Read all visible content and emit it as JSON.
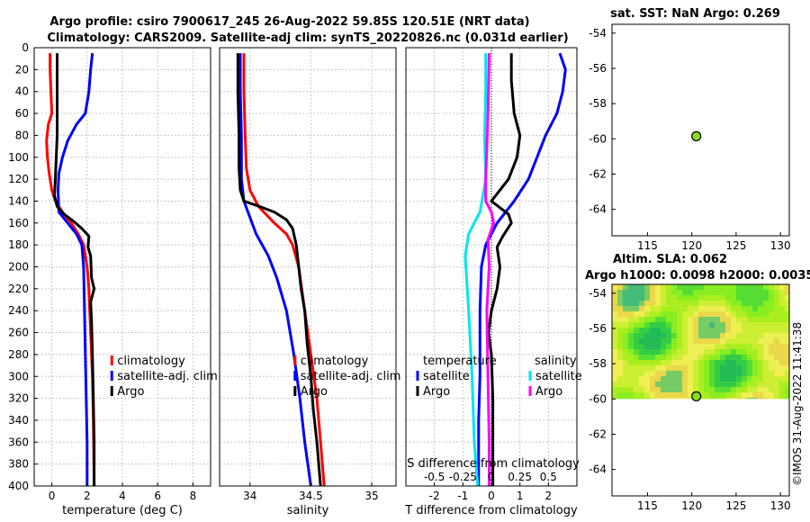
{
  "figure": {
    "title_line1": "Argo profile: csiro 7900617_245 26-Aug-2022 59.85S 120.51E (NRT data)",
    "title_line2": "Climatology: CARS2009. Satellite-adj clim: synTS_20220826.nc (0.031d earlier)",
    "watermark": "©IMOS 31-Aug-2022 11:41:38",
    "colors": {
      "climatology": "#ff0000",
      "satellite": "#0000ff",
      "argo": "#000000",
      "sat_salinity": "#00e5ee",
      "argo_salinity": "#ff00ff"
    }
  },
  "chart_data": [
    {
      "type": "line",
      "id": "temperature",
      "xlabel": "temperature (deg C)",
      "ylabel": "",
      "xlim": [
        -1,
        9
      ],
      "ylim": [
        400,
        0
      ],
      "xticks": [
        0,
        2,
        4,
        6,
        8
      ],
      "xtick_labels": [
        "0",
        "2",
        "4",
        "6",
        "8"
      ],
      "yticks": [
        0,
        20,
        40,
        60,
        80,
        100,
        120,
        140,
        160,
        180,
        200,
        220,
        240,
        260,
        280,
        300,
        320,
        340,
        360,
        380,
        400
      ],
      "ytick_labels": [
        "0",
        "20",
        "40",
        "60",
        "80",
        "100",
        "120",
        "140",
        "160",
        "180",
        "200",
        "220",
        "240",
        "260",
        "280",
        "300",
        "320",
        "340",
        "360",
        "380",
        "400"
      ],
      "legend": [
        "climatology",
        "satellite-adj. clim",
        "Argo"
      ],
      "series": [
        {
          "name": "climatology",
          "color": "#ff0000",
          "points": [
            [
              -0.1,
              5
            ],
            [
              -0.1,
              20
            ],
            [
              -0.05,
              40
            ],
            [
              0,
              60
            ],
            [
              -0.2,
              70
            ],
            [
              -0.3,
              85
            ],
            [
              -0.25,
              100
            ],
            [
              -0.15,
              115
            ],
            [
              0,
              130
            ],
            [
              0.2,
              140
            ],
            [
              0.6,
              150
            ],
            [
              1.1,
              160
            ],
            [
              1.5,
              170
            ],
            [
              1.8,
              180
            ],
            [
              2.0,
              200
            ],
            [
              2.1,
              220
            ],
            [
              2.15,
              240
            ],
            [
              2.2,
              260
            ],
            [
              2.25,
              280
            ],
            [
              2.3,
              300
            ],
            [
              2.35,
              340
            ],
            [
              2.4,
              400
            ]
          ]
        },
        {
          "name": "satellite-adj. clim",
          "color": "#0000ff",
          "points": [
            [
              2.3,
              5
            ],
            [
              2.2,
              20
            ],
            [
              2.1,
              40
            ],
            [
              1.9,
              60
            ],
            [
              1.4,
              70
            ],
            [
              0.9,
              85
            ],
            [
              0.6,
              100
            ],
            [
              0.4,
              115
            ],
            [
              0.35,
              130
            ],
            [
              0.4,
              150
            ],
            [
              0.9,
              160
            ],
            [
              1.4,
              170
            ],
            [
              1.7,
              180
            ],
            [
              1.8,
              200
            ],
            [
              1.85,
              240
            ],
            [
              1.9,
              280
            ],
            [
              1.95,
              320
            ],
            [
              2.0,
              360
            ],
            [
              2.0,
              400
            ]
          ]
        },
        {
          "name": "Argo",
          "color": "#000000",
          "points": [
            [
              0.3,
              5
            ],
            [
              0.3,
              30
            ],
            [
              0.3,
              60
            ],
            [
              0.3,
              80
            ],
            [
              0.25,
              100
            ],
            [
              0.2,
              120
            ],
            [
              0.15,
              135
            ],
            [
              0.3,
              145
            ],
            [
              0.7,
              152
            ],
            [
              1.2,
              158
            ],
            [
              1.7,
              165
            ],
            [
              2.1,
              172
            ],
            [
              2.05,
              182
            ],
            [
              2.2,
              190
            ],
            [
              2.25,
              210
            ],
            [
              2.4,
              220
            ],
            [
              2.2,
              232
            ],
            [
              2.25,
              250
            ],
            [
              2.3,
              280
            ],
            [
              2.35,
              320
            ],
            [
              2.4,
              360
            ],
            [
              2.4,
              400
            ]
          ]
        }
      ]
    },
    {
      "type": "line",
      "id": "salinity",
      "xlabel": "salinity",
      "xlim": [
        33.75,
        35.2
      ],
      "ylim": [
        400,
        0
      ],
      "xticks": [
        34,
        34.5,
        35
      ],
      "xtick_labels": [
        "34",
        "34.5",
        "35"
      ],
      "legend": [
        "climatology",
        "satellite-adj. clim",
        "Argo"
      ],
      "series": [
        {
          "name": "climatology",
          "color": "#ff0000",
          "points": [
            [
              33.95,
              5
            ],
            [
              33.95,
              40
            ],
            [
              33.96,
              80
            ],
            [
              33.97,
              110
            ],
            [
              34.0,
              130
            ],
            [
              34.07,
              145
            ],
            [
              34.2,
              160
            ],
            [
              34.3,
              170
            ],
            [
              34.35,
              180
            ],
            [
              34.4,
              200
            ],
            [
              34.45,
              240
            ],
            [
              34.5,
              280
            ],
            [
              34.55,
              320
            ],
            [
              34.58,
              360
            ],
            [
              34.61,
              400
            ]
          ]
        },
        {
          "name": "satellite-adj. clim",
          "color": "#0000ff",
          "points": [
            [
              33.92,
              5
            ],
            [
              33.92,
              40
            ],
            [
              33.93,
              80
            ],
            [
              33.93,
              120
            ],
            [
              33.95,
              140
            ],
            [
              34.0,
              155
            ],
            [
              34.05,
              170
            ],
            [
              34.15,
              190
            ],
            [
              34.22,
              210
            ],
            [
              34.3,
              240
            ],
            [
              34.36,
              280
            ],
            [
              34.41,
              320
            ],
            [
              34.45,
              360
            ],
            [
              34.5,
              400
            ]
          ]
        },
        {
          "name": "Argo",
          "color": "#000000",
          "points": [
            [
              33.9,
              5
            ],
            [
              33.9,
              40
            ],
            [
              33.91,
              80
            ],
            [
              33.91,
              110
            ],
            [
              33.92,
              130
            ],
            [
              33.95,
              140
            ],
            [
              34.08,
              145
            ],
            [
              34.2,
              150
            ],
            [
              34.3,
              157
            ],
            [
              34.35,
              165
            ],
            [
              34.38,
              180
            ],
            [
              34.4,
              200
            ],
            [
              34.42,
              220
            ],
            [
              34.45,
              240
            ],
            [
              34.47,
              270
            ],
            [
              34.5,
              300
            ],
            [
              34.52,
              330
            ],
            [
              34.55,
              360
            ],
            [
              34.58,
              400
            ]
          ]
        }
      ]
    },
    {
      "type": "line",
      "id": "difference",
      "xlabel": "T difference from climatology",
      "top_axis_label": "S difference from climatology",
      "xlim": [
        -3,
        3
      ],
      "ylim": [
        400,
        0
      ],
      "xticks": [
        -2,
        -1,
        0,
        1,
        2
      ],
      "xtick_labels": [
        "-2",
        "-1",
        "0",
        "1",
        "2"
      ],
      "s_xlim": [
        -0.75,
        0.75
      ],
      "s_xticks": [
        -0.5,
        -0.25,
        0,
        0.25,
        0.5
      ],
      "s_xtick_labels": [
        "-0.5",
        "-0.25",
        "0",
        "0.25",
        "0.5"
      ],
      "legend_left_title": "temperature",
      "legend_left": [
        "satellite",
        "Argo"
      ],
      "legend_right_title": "salinity",
      "legend_right": [
        "satellite",
        "Argo"
      ],
      "series": [
        {
          "name": "temperature satellite",
          "color": "#0000ff",
          "axis": "T",
          "points": [
            [
              2.4,
              5
            ],
            [
              2.6,
              20
            ],
            [
              2.5,
              40
            ],
            [
              2.3,
              60
            ],
            [
              1.9,
              80
            ],
            [
              1.6,
              100
            ],
            [
              1.3,
              120
            ],
            [
              0.8,
              140
            ],
            [
              0.2,
              160
            ],
            [
              -0.2,
              180
            ],
            [
              -0.35,
              200
            ],
            [
              -0.4,
              240
            ],
            [
              -0.4,
              300
            ],
            [
              -0.45,
              340
            ],
            [
              -0.45,
              400
            ]
          ]
        },
        {
          "name": "temperature Argo",
          "color": "#000000",
          "axis": "T",
          "points": [
            [
              0.7,
              5
            ],
            [
              0.7,
              30
            ],
            [
              0.8,
              60
            ],
            [
              1.0,
              80
            ],
            [
              0.9,
              100
            ],
            [
              0.6,
              120
            ],
            [
              0.0,
              140
            ],
            [
              0.6,
              152
            ],
            [
              0.7,
              160
            ],
            [
              0.4,
              172
            ],
            [
              0.2,
              182
            ],
            [
              0.3,
              200
            ],
            [
              0.2,
              220
            ],
            [
              0.0,
              240
            ],
            [
              -0.1,
              260
            ],
            [
              0.0,
              280
            ],
            [
              0.05,
              320
            ],
            [
              0.05,
              400
            ]
          ]
        },
        {
          "name": "salinity satellite",
          "color": "#00e5ee",
          "axis": "S",
          "points": [
            [
              -0.05,
              5
            ],
            [
              -0.05,
              40
            ],
            [
              -0.06,
              80
            ],
            [
              -0.05,
              120
            ],
            [
              -0.1,
              150
            ],
            [
              -0.2,
              170
            ],
            [
              -0.23,
              190
            ],
            [
              -0.2,
              240
            ],
            [
              -0.17,
              300
            ],
            [
              -0.15,
              360
            ],
            [
              -0.12,
              400
            ]
          ]
        },
        {
          "name": "salinity Argo",
          "color": "#ff00ff",
          "axis": "S",
          "points": [
            [
              -0.02,
              5
            ],
            [
              -0.03,
              60
            ],
            [
              -0.05,
              120
            ],
            [
              -0.05,
              140
            ],
            [
              0.0,
              150
            ],
            [
              0.02,
              160
            ],
            [
              -0.03,
              175
            ],
            [
              -0.02,
              200
            ],
            [
              -0.04,
              240
            ],
            [
              -0.03,
              300
            ],
            [
              -0.02,
              360
            ],
            [
              -0.02,
              400
            ]
          ]
        }
      ]
    },
    {
      "type": "scatter",
      "id": "sst_map",
      "title": "sat. SST: NaN Argo: 0.269",
      "xlim": [
        111,
        131
      ],
      "ylim": [
        -65.5,
        -53.5
      ],
      "xticks": [
        115,
        120,
        125,
        130
      ],
      "xtick_labels": [
        "115",
        "120",
        "125",
        "130"
      ],
      "yticks": [
        -54,
        -56,
        -58,
        -60,
        -62,
        -64
      ],
      "ytick_labels": [
        "-54",
        "-56",
        "-58",
        "-60",
        "-62",
        "-64"
      ],
      "points": [
        {
          "lon": 120.51,
          "lat": -59.85,
          "color": "#88dd22"
        }
      ]
    },
    {
      "type": "heatmap",
      "id": "sla_map",
      "title_line1": "Altim. SLA: 0.062",
      "title_line2": "Argo h1000: 0.0098 h2000: 0.0035",
      "xlim": [
        111,
        131
      ],
      "ylim": [
        -65.5,
        -53.5
      ],
      "data_lat_range": [
        -60,
        -53.5
      ],
      "xticks": [
        115,
        120,
        125,
        130
      ],
      "xtick_labels": [
        "115",
        "120",
        "125",
        "130"
      ],
      "yticks": [
        -54,
        -56,
        -58,
        -60,
        -62,
        -64
      ],
      "ytick_labels": [
        "-54",
        "-56",
        "-58",
        "-60",
        "-62",
        "-64"
      ],
      "points": [
        {
          "lon": 120.51,
          "lat": -59.85,
          "color": "#88dd22"
        }
      ]
    }
  ]
}
